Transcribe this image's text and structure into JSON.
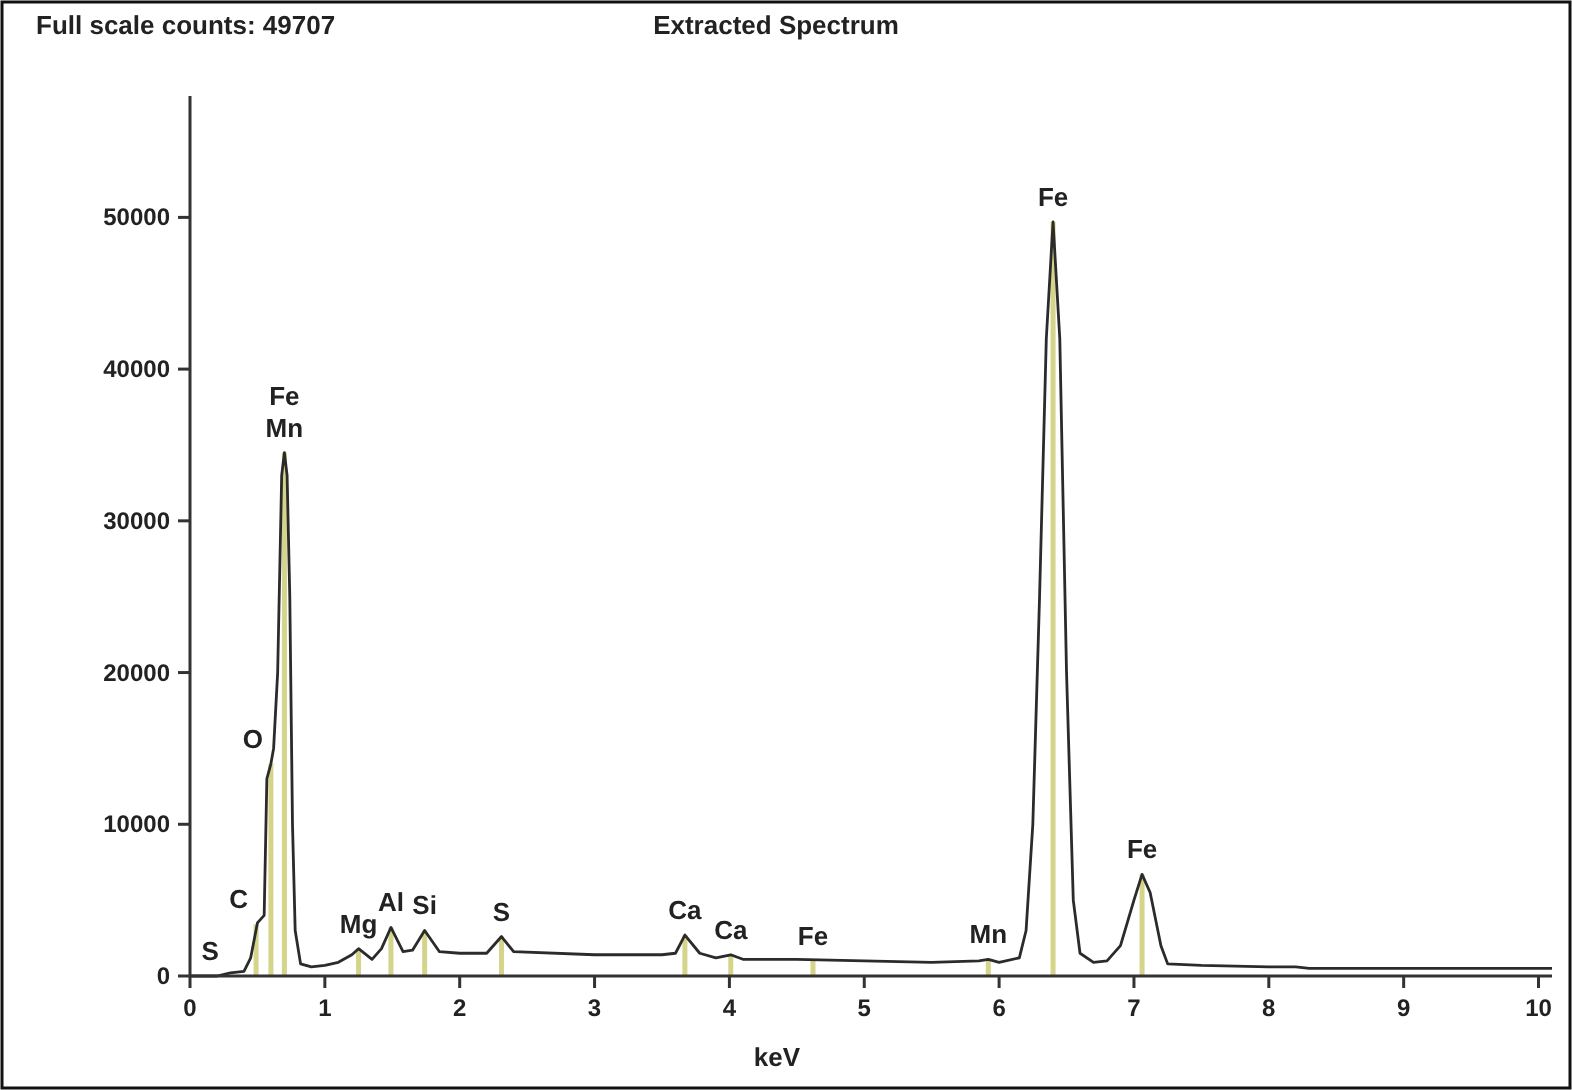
{
  "chart_data": {
    "type": "line",
    "title": "Extracted Spectrum",
    "xlabel": "keV",
    "annotations": [
      "Full scale counts: 49707",
      {
        "text": "S",
        "x": 0.15,
        "y": 0
      },
      {
        "text": "C",
        "x": 0.49,
        "y": 3400
      },
      {
        "text": "O",
        "x": 0.6,
        "y": 14000
      },
      {
        "text": "Fe",
        "x": 0.7,
        "y": 34500
      },
      {
        "text": "Mn",
        "x": 0.7,
        "y": 34500
      },
      {
        "text": "Mg",
        "x": 1.25,
        "y": 1800
      },
      {
        "text": "Al",
        "x": 1.49,
        "y": 3200
      },
      {
        "text": "Si",
        "x": 1.74,
        "y": 3000
      },
      {
        "text": "S",
        "x": 2.31,
        "y": 2600
      },
      {
        "text": "Ca",
        "x": 3.67,
        "y": 2700
      },
      {
        "text": "Ca",
        "x": 4.01,
        "y": 1400
      },
      {
        "text": "Fe",
        "x": 4.62,
        "y": 1000
      },
      {
        "text": "Mn",
        "x": 5.92,
        "y": 1100
      },
      {
        "text": "Fe",
        "x": 6.4,
        "y": 49700
      },
      {
        "text": "Fe",
        "x": 7.06,
        "y": 6700
      }
    ],
    "x": [
      0,
      0.15,
      0.2,
      0.3,
      0.4,
      0.45,
      0.5,
      0.55,
      0.57,
      0.6,
      0.62,
      0.65,
      0.68,
      0.7,
      0.72,
      0.74,
      0.76,
      0.78,
      0.82,
      0.9,
      1.0,
      1.1,
      1.2,
      1.25,
      1.35,
      1.42,
      1.49,
      1.58,
      1.65,
      1.74,
      1.85,
      2.0,
      2.2,
      2.31,
      2.4,
      3.0,
      3.5,
      3.6,
      3.67,
      3.78,
      3.9,
      4.01,
      4.1,
      4.5,
      5.0,
      5.5,
      5.85,
      5.92,
      6.0,
      6.15,
      6.2,
      6.25,
      6.3,
      6.35,
      6.4,
      6.45,
      6.5,
      6.55,
      6.6,
      6.7,
      6.8,
      6.9,
      7.0,
      7.06,
      7.12,
      7.2,
      7.25,
      7.5,
      8.0,
      8.2,
      8.3,
      9.0,
      10.0,
      10.1
    ],
    "series": [
      {
        "type": "bar",
        "color": "#d4d48a",
        "x": [
          0.49,
          0.6,
          0.7,
          1.25,
          1.49,
          1.74,
          2.31,
          3.67,
          4.01,
          4.62,
          5.92,
          6.4,
          7.06
        ],
        "values": [
          3400,
          14000,
          34500,
          1800,
          3200,
          3000,
          2600,
          2700,
          1400,
          1000,
          1100,
          49700,
          6700
        ]
      },
      {
        "color": "#2b2b2b",
        "values": [
          0,
          0,
          0,
          200,
          300,
          1200,
          3500,
          4000,
          13000,
          14000,
          15000,
          20000,
          33000,
          34500,
          33000,
          25000,
          10000,
          3000,
          800,
          600,
          700,
          900,
          1400,
          1800,
          1100,
          1800,
          3200,
          1600,
          1700,
          3000,
          1600,
          1500,
          1500,
          2600,
          1600,
          1400,
          1400,
          1500,
          2700,
          1500,
          1200,
          1400,
          1100,
          1100,
          1000,
          900,
          1000,
          1100,
          900,
          1200,
          3000,
          10000,
          25000,
          42000,
          49700,
          42000,
          20000,
          5000,
          1500,
          900,
          1000,
          2000,
          5000,
          6700,
          5500,
          2000,
          800,
          700,
          600,
          600,
          500,
          500,
          500,
          500
        ]
      }
    ],
    "xlim": [
      0,
      10.1
    ],
    "ylim": [
      0,
      58000
    ],
    "xticks": [
      0,
      1,
      2,
      3,
      4,
      5,
      6,
      7,
      8,
      9,
      10
    ],
    "yticks": [
      0,
      10000,
      20000,
      30000,
      40000,
      50000
    ],
    "grid": false,
    "marker": "none",
    "line_style": "solid"
  }
}
